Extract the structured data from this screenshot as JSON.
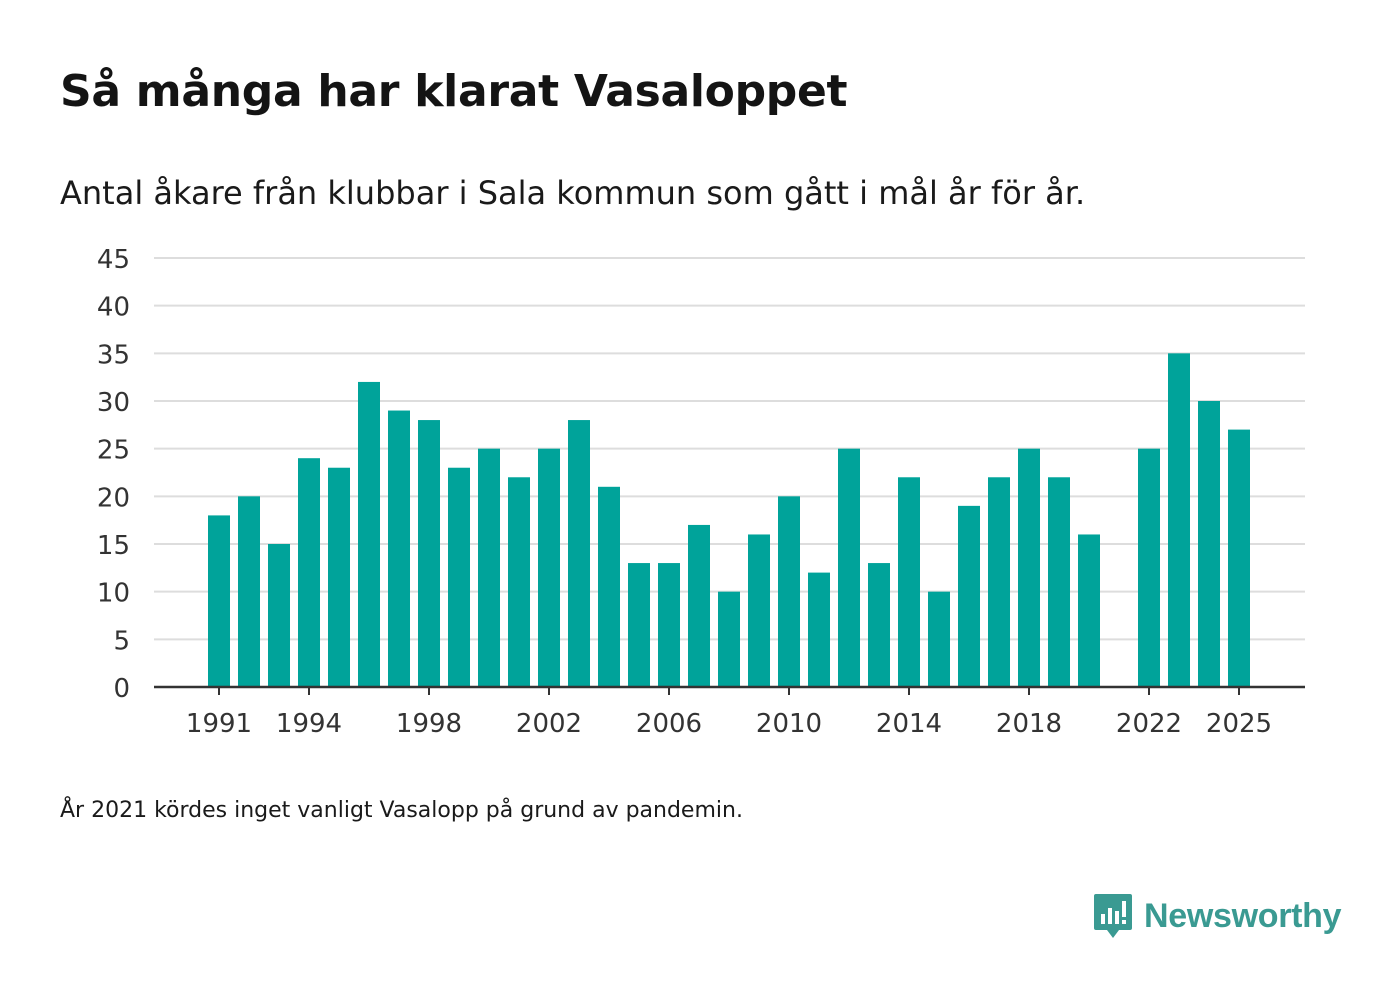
{
  "header": {
    "title": "Så många har klarat Vasaloppet",
    "subtitle": "Antal åkare från klubbar i Sala kommun som gått i mål år för år."
  },
  "footnote": "År 2021 kördes inget vanligt Vasalopp på grund av pandemin.",
  "brand": {
    "name": "Newsworthy",
    "icon": "newsworthy-logo-icon",
    "color": "#3a9a92"
  },
  "colors": {
    "bar": "#00a39a",
    "grid": "#dddddd",
    "axis": "#333333",
    "tick_text": "#333333"
  },
  "chart_data": {
    "type": "bar",
    "title": "Så många har klarat Vasaloppet",
    "xlabel": "",
    "ylabel": "",
    "ylim": [
      0,
      45
    ],
    "yticks": [
      0,
      5,
      10,
      15,
      20,
      25,
      30,
      35,
      40,
      45
    ],
    "xticks": [
      "1991",
      "1994",
      "1998",
      "2002",
      "2006",
      "2010",
      "2014",
      "2018",
      "2022",
      "2025"
    ],
    "grid": true,
    "categories": [
      "1991",
      "1992",
      "1993",
      "1994",
      "1995",
      "1996",
      "1997",
      "1998",
      "1999",
      "2000",
      "2001",
      "2002",
      "2003",
      "2004",
      "2005",
      "2006",
      "2007",
      "2008",
      "2009",
      "2010",
      "2011",
      "2012",
      "2013",
      "2014",
      "2015",
      "2016",
      "2017",
      "2018",
      "2019",
      "2020",
      "2021",
      "2022",
      "2023",
      "2024",
      "2025"
    ],
    "values": [
      18,
      20,
      15,
      24,
      23,
      32,
      29,
      28,
      23,
      25,
      22,
      25,
      28,
      21,
      13,
      13,
      17,
      10,
      16,
      20,
      12,
      25,
      13,
      22,
      10,
      19,
      22,
      25,
      22,
      16,
      null,
      25,
      35,
      30,
      27
    ]
  }
}
